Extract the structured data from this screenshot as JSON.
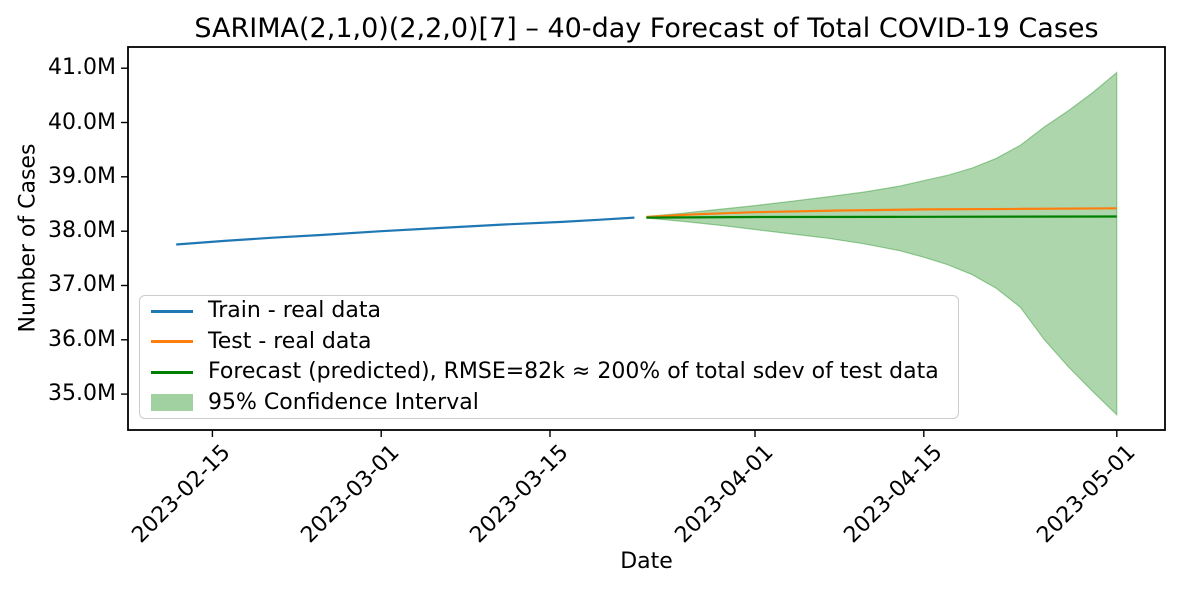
{
  "chart_data": {
    "type": "line",
    "title": "SARIMA(2,1,0)(2,2,0)[7] – 40-day Forecast of Total COVID-19 Cases",
    "xlabel": "Date",
    "ylabel": "Number of Cases",
    "grid": false,
    "legend_position": "lower left",
    "xlim": [
      "2023-02-08",
      "2023-05-05"
    ],
    "ylim_millions": [
      34.34,
      41.39
    ],
    "yticks": [
      {
        "value": 35.0,
        "label": "35.0M"
      },
      {
        "value": 36.0,
        "label": "36.0M"
      },
      {
        "value": 37.0,
        "label": "37.0M"
      },
      {
        "value": 38.0,
        "label": "38.0M"
      },
      {
        "value": 39.0,
        "label": "39.0M"
      },
      {
        "value": 40.0,
        "label": "40.0M"
      },
      {
        "value": 41.0,
        "label": "41.0M"
      }
    ],
    "xticks": [
      {
        "date": "2023-02-15",
        "label": "2023-02-15"
      },
      {
        "date": "2023-03-01",
        "label": "2023-03-01"
      },
      {
        "date": "2023-03-15",
        "label": "2023-03-15"
      },
      {
        "date": "2023-04-01",
        "label": "2023-04-01"
      },
      {
        "date": "2023-04-15",
        "label": "2023-04-15"
      },
      {
        "date": "2023-05-01",
        "label": "2023-05-01"
      }
    ],
    "series": [
      {
        "name": "Train - real data",
        "color": "#1f77b4",
        "points_millions": [
          [
            "2023-02-12",
            37.755
          ],
          [
            "2023-02-16",
            37.82
          ],
          [
            "2023-02-20",
            37.88
          ],
          [
            "2023-02-24",
            37.93
          ],
          [
            "2023-03-01",
            38.0
          ],
          [
            "2023-03-06",
            38.06
          ],
          [
            "2023-03-11",
            38.12
          ],
          [
            "2023-03-16",
            38.17
          ],
          [
            "2023-03-19",
            38.21
          ],
          [
            "2023-03-22",
            38.25
          ]
        ]
      },
      {
        "name": "Test - real data",
        "color": "#ff7f0e",
        "points_millions": [
          [
            "2023-03-23",
            38.26
          ],
          [
            "2023-03-27",
            38.31
          ],
          [
            "2023-04-01",
            38.35
          ],
          [
            "2023-04-08",
            38.38
          ],
          [
            "2023-04-15",
            38.4
          ],
          [
            "2023-04-23",
            38.41
          ],
          [
            "2023-05-01",
            38.42
          ]
        ]
      },
      {
        "name": "Forecast (predicted), RMSE=82k ≈ 200% of total sdev of test data",
        "color": "#008000",
        "points_millions": [
          [
            "2023-03-23",
            38.25
          ],
          [
            "2023-04-01",
            38.26
          ],
          [
            "2023-04-15",
            38.265
          ],
          [
            "2023-05-01",
            38.27
          ]
        ]
      }
    ],
    "confidence_band": {
      "name": "95% Confidence Interval",
      "color": "#008000",
      "fill_opacity": 0.32,
      "points_millions": [
        [
          "2023-03-23",
          38.24,
          38.27
        ],
        [
          "2023-03-26",
          38.18,
          38.33
        ],
        [
          "2023-03-29",
          38.11,
          38.4
        ],
        [
          "2023-04-01",
          38.03,
          38.47
        ],
        [
          "2023-04-04",
          37.95,
          38.55
        ],
        [
          "2023-04-07",
          37.87,
          38.63
        ],
        [
          "2023-04-10",
          37.77,
          38.72
        ],
        [
          "2023-04-13",
          37.64,
          38.83
        ],
        [
          "2023-04-15",
          37.52,
          38.93
        ],
        [
          "2023-04-17",
          37.38,
          39.03
        ],
        [
          "2023-04-19",
          37.2,
          39.16
        ],
        [
          "2023-04-21",
          36.95,
          39.34
        ],
        [
          "2023-04-23",
          36.6,
          39.58
        ],
        [
          "2023-04-25",
          36.0,
          39.92
        ],
        [
          "2023-04-27",
          35.5,
          40.22
        ],
        [
          "2023-04-29",
          35.05,
          40.55
        ],
        [
          "2023-05-01",
          34.62,
          40.92
        ]
      ]
    }
  }
}
